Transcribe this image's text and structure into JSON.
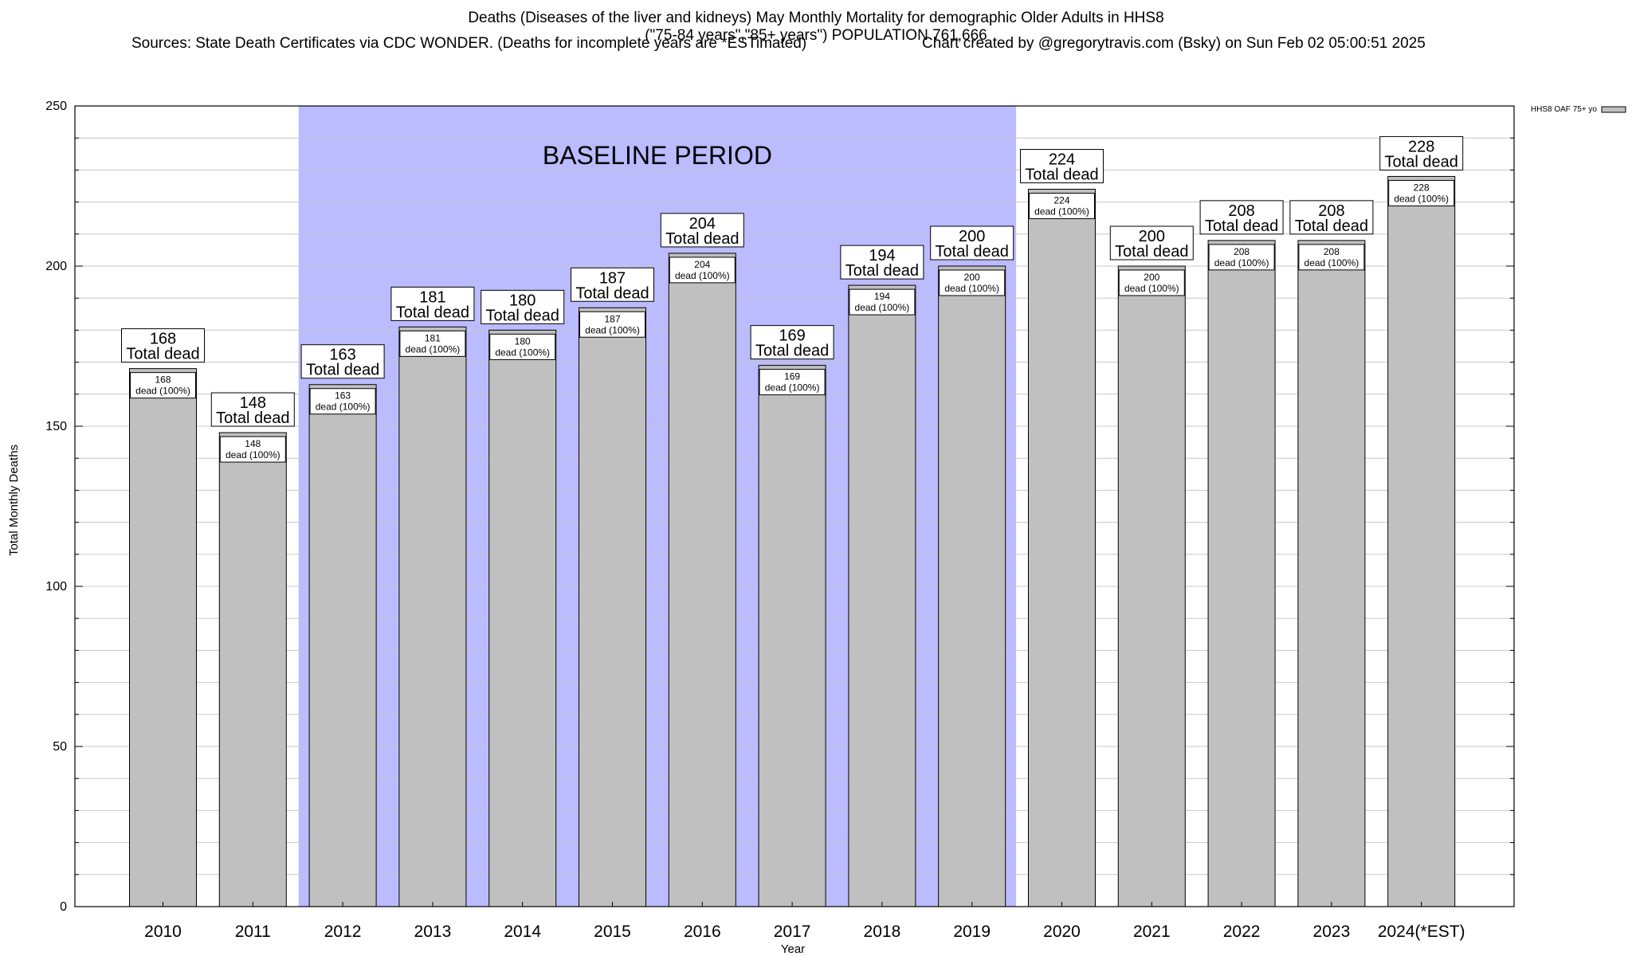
{
  "title": {
    "line1": "Deaths (Diseases of the liver and kidneys) May Monthly Mortality for demographic Older Adults in HHS8",
    "line2": "(\"75-84 years\",\"85+ years\") POPULATION 761,666",
    "line3_left": "Sources: State Death Certificates via CDC WONDER. (Deaths for incomplete years are *ESTimated)",
    "line3_right": "Chart created by @gregorytravis.com (Bsky) on Sun Feb 02 05:00:51 2025"
  },
  "colors": {
    "bar_fill": "#c0c0c0",
    "baseline_fill": "#bbbbff",
    "grid": "#c8c8c8"
  },
  "chart_data": {
    "type": "bar",
    "xlabel": "Year",
    "ylabel": "Total Monthly Deaths",
    "ylim": [
      0,
      250
    ],
    "yticks": [
      0,
      50,
      100,
      150,
      200,
      250
    ],
    "grid": true,
    "legend": {
      "label": "HHS8 OAF 75+ yo",
      "position": "top-right"
    },
    "categories": [
      "2010",
      "2011",
      "2012",
      "2013",
      "2014",
      "2015",
      "2016",
      "2017",
      "2018",
      "2019",
      "2020",
      "2021",
      "2022",
      "2023",
      "2024(*EST)"
    ],
    "series": [
      {
        "name": "HHS8 OAF 75+ yo",
        "values": [
          168,
          148,
          163,
          181,
          180,
          187,
          204,
          169,
          194,
          200,
          224,
          200,
          208,
          208,
          228
        ]
      }
    ],
    "top_label_text": "Total dead",
    "inner_label_text": "dead (100%)",
    "baseline_period": {
      "label": "BASELINE PERIOD",
      "start": "2012",
      "end": "2019"
    }
  }
}
